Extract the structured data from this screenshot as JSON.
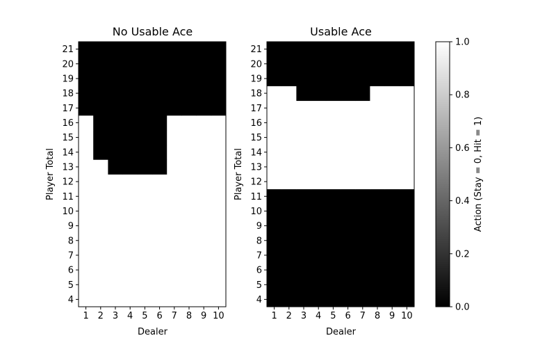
{
  "chart_data": [
    {
      "type": "heatmap",
      "title": "No Usable Ace",
      "xlabel": "Dealer",
      "ylabel": "Player Total",
      "x": [
        1,
        2,
        3,
        4,
        5,
        6,
        7,
        8,
        9,
        10
      ],
      "y": [
        4,
        5,
        6,
        7,
        8,
        9,
        10,
        11,
        12,
        13,
        14,
        15,
        16,
        17,
        18,
        19,
        20,
        21
      ],
      "x_tick_labels": [
        "1",
        "2",
        "3",
        "4",
        "5",
        "6",
        "7",
        "8",
        "9",
        "10"
      ],
      "y_tick_labels": [
        "4",
        "5",
        "6",
        "7",
        "8",
        "9",
        "10",
        "11",
        "12",
        "13",
        "14",
        "15",
        "16",
        "17",
        "18",
        "19",
        "20",
        "21"
      ],
      "colormap": "gray",
      "clim": [
        0,
        1
      ],
      "values": [
        [
          1,
          1,
          1,
          1,
          1,
          1,
          1,
          1,
          1,
          1
        ],
        [
          1,
          1,
          1,
          1,
          1,
          1,
          1,
          1,
          1,
          1
        ],
        [
          1,
          1,
          1,
          1,
          1,
          1,
          1,
          1,
          1,
          1
        ],
        [
          1,
          1,
          1,
          1,
          1,
          1,
          1,
          1,
          1,
          1
        ],
        [
          1,
          1,
          1,
          1,
          1,
          1,
          1,
          1,
          1,
          1
        ],
        [
          1,
          1,
          1,
          1,
          1,
          1,
          1,
          1,
          1,
          1
        ],
        [
          1,
          1,
          1,
          1,
          1,
          1,
          1,
          1,
          1,
          1
        ],
        [
          1,
          1,
          1,
          1,
          1,
          1,
          1,
          1,
          1,
          1
        ],
        [
          1,
          1,
          1,
          1,
          1,
          1,
          1,
          1,
          1,
          1
        ],
        [
          1,
          1,
          0,
          0,
          0,
          0,
          1,
          1,
          1,
          1
        ],
        [
          1,
          0,
          0,
          0,
          0,
          0,
          1,
          1,
          1,
          1
        ],
        [
          1,
          0,
          0,
          0,
          0,
          0,
          1,
          1,
          1,
          1
        ],
        [
          1,
          0,
          0,
          0,
          0,
          0,
          1,
          1,
          1,
          1
        ],
        [
          0,
          0,
          0,
          0,
          0,
          0,
          0,
          0,
          0,
          0
        ],
        [
          0,
          0,
          0,
          0,
          0,
          0,
          0,
          0,
          0,
          0
        ],
        [
          0,
          0,
          0,
          0,
          0,
          0,
          0,
          0,
          0,
          0
        ],
        [
          0,
          0,
          0,
          0,
          0,
          0,
          0,
          0,
          0,
          0
        ],
        [
          0,
          0,
          0,
          0,
          0,
          0,
          0,
          0,
          0,
          0
        ]
      ]
    },
    {
      "type": "heatmap",
      "title": "Usable Ace",
      "xlabel": "Dealer",
      "ylabel": "Player Total",
      "x": [
        1,
        2,
        3,
        4,
        5,
        6,
        7,
        8,
        9,
        10
      ],
      "y": [
        4,
        5,
        6,
        7,
        8,
        9,
        10,
        11,
        12,
        13,
        14,
        15,
        16,
        17,
        18,
        19,
        20,
        21
      ],
      "x_tick_labels": [
        "1",
        "2",
        "3",
        "4",
        "5",
        "6",
        "7",
        "8",
        "9",
        "10"
      ],
      "y_tick_labels": [
        "4",
        "5",
        "6",
        "7",
        "8",
        "9",
        "10",
        "11",
        "12",
        "13",
        "14",
        "15",
        "16",
        "17",
        "18",
        "19",
        "20",
        "21"
      ],
      "colormap": "gray",
      "clim": [
        0,
        1
      ],
      "values": [
        [
          0,
          0,
          0,
          0,
          0,
          0,
          0,
          0,
          0,
          0
        ],
        [
          0,
          0,
          0,
          0,
          0,
          0,
          0,
          0,
          0,
          0
        ],
        [
          0,
          0,
          0,
          0,
          0,
          0,
          0,
          0,
          0,
          0
        ],
        [
          0,
          0,
          0,
          0,
          0,
          0,
          0,
          0,
          0,
          0
        ],
        [
          0,
          0,
          0,
          0,
          0,
          0,
          0,
          0,
          0,
          0
        ],
        [
          0,
          0,
          0,
          0,
          0,
          0,
          0,
          0,
          0,
          0
        ],
        [
          0,
          0,
          0,
          0,
          0,
          0,
          0,
          0,
          0,
          0
        ],
        [
          0,
          0,
          0,
          0,
          0,
          0,
          0,
          0,
          0,
          0
        ],
        [
          1,
          1,
          1,
          1,
          1,
          1,
          1,
          1,
          1,
          1
        ],
        [
          1,
          1,
          1,
          1,
          1,
          1,
          1,
          1,
          1,
          1
        ],
        [
          1,
          1,
          1,
          1,
          1,
          1,
          1,
          1,
          1,
          1
        ],
        [
          1,
          1,
          1,
          1,
          1,
          1,
          1,
          1,
          1,
          1
        ],
        [
          1,
          1,
          1,
          1,
          1,
          1,
          1,
          1,
          1,
          1
        ],
        [
          1,
          1,
          1,
          1,
          1,
          1,
          1,
          1,
          1,
          1
        ],
        [
          1,
          1,
          0,
          0,
          0,
          0,
          0,
          1,
          1,
          1
        ],
        [
          0,
          0,
          0,
          0,
          0,
          0,
          0,
          0,
          0,
          0
        ],
        [
          0,
          0,
          0,
          0,
          0,
          0,
          0,
          0,
          0,
          0
        ],
        [
          0,
          0,
          0,
          0,
          0,
          0,
          0,
          0,
          0,
          0
        ]
      ]
    }
  ],
  "colorbar": {
    "label": "Action (Stay = 0, Hit = 1)",
    "range": [
      0,
      1
    ],
    "ticks": [
      "0.0",
      "0.2",
      "0.4",
      "0.6",
      "0.8",
      "1.0"
    ],
    "low_color": "#000000",
    "high_color": "#ffffff"
  }
}
